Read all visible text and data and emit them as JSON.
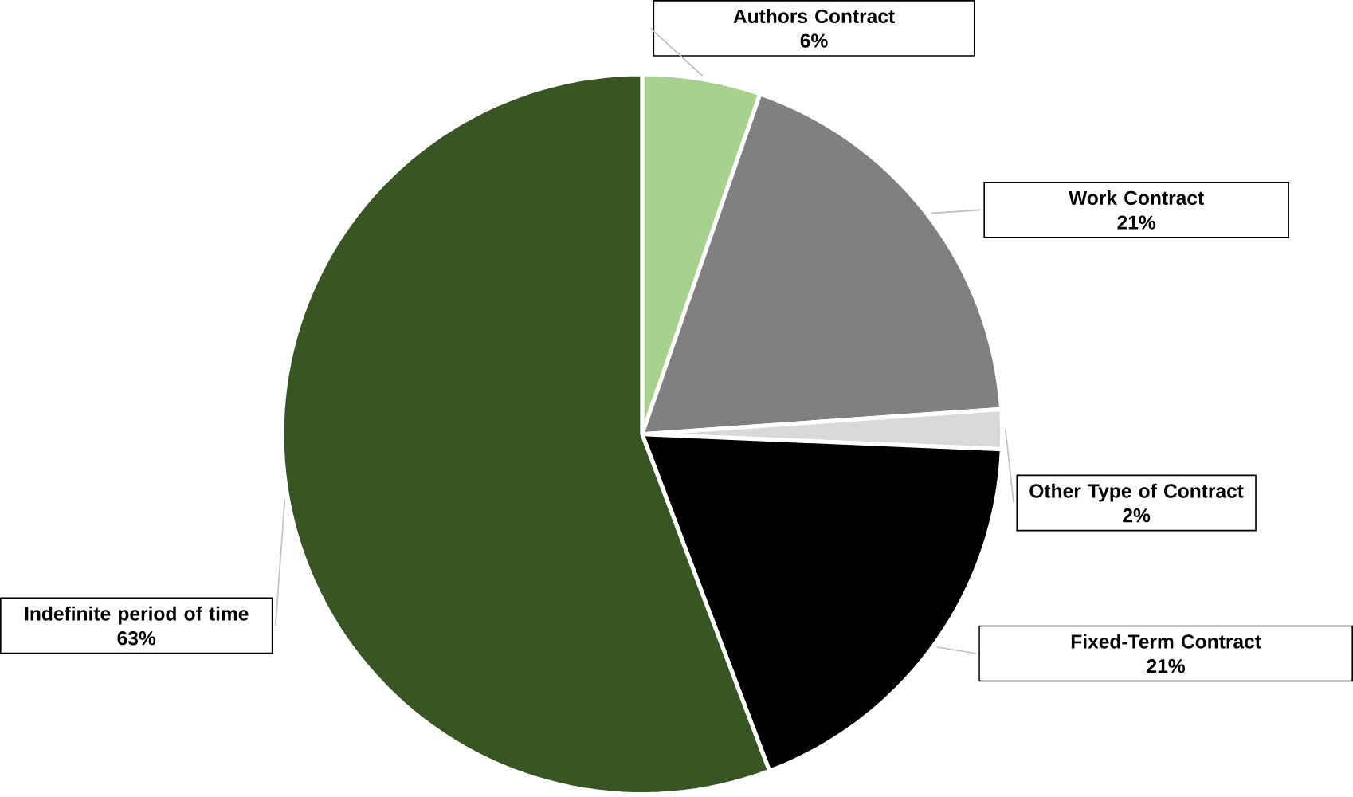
{
  "chart_data": {
    "type": "pie",
    "categories": [
      "Authors Contract",
      "Work Contract",
      "Other Type of Contract",
      "Fixed-Term Contract",
      "Indefinite period of time"
    ],
    "values": [
      6,
      21,
      2,
      21,
      63
    ],
    "value_labels": [
      "6%",
      "21%",
      "2%",
      "21%",
      "63%"
    ],
    "colors": [
      "#a9d18e",
      "#808080",
      "#d9d9d9",
      "#000000",
      "#375623"
    ]
  }
}
